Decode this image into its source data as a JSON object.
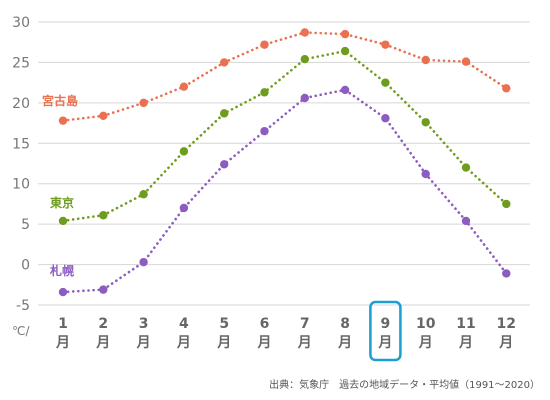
{
  "chart_data": {
    "type": "line",
    "categories": [
      {
        "num": "1",
        "unit": "月"
      },
      {
        "num": "2",
        "unit": "月"
      },
      {
        "num": "3",
        "unit": "月"
      },
      {
        "num": "4",
        "unit": "月"
      },
      {
        "num": "5",
        "unit": "月"
      },
      {
        "num": "6",
        "unit": "月"
      },
      {
        "num": "7",
        "unit": "月"
      },
      {
        "num": "8",
        "unit": "月"
      },
      {
        "num": "9",
        "unit": "月"
      },
      {
        "num": "10",
        "unit": "月"
      },
      {
        "num": "11",
        "unit": "月"
      },
      {
        "num": "12",
        "unit": "月"
      }
    ],
    "y_ticks": [
      30,
      25,
      20,
      15,
      10,
      5,
      0,
      -5
    ],
    "y_unit": "℃/",
    "ylim": [
      -5,
      30
    ],
    "grid": true,
    "highlight_category": "9",
    "highlight_color": "#1a9fd0",
    "series": [
      {
        "name": "宮古島",
        "color": "#ea7050",
        "values": [
          17.8,
          18.4,
          20.0,
          22.0,
          25.0,
          27.2,
          28.7,
          28.5,
          27.2,
          25.3,
          25.1,
          21.8
        ]
      },
      {
        "name": "東京",
        "color": "#6e9c1e",
        "values": [
          5.4,
          6.1,
          8.7,
          14.0,
          18.7,
          21.3,
          25.4,
          26.4,
          22.5,
          17.6,
          12.0,
          7.5
        ]
      },
      {
        "name": "札幌",
        "color": "#8c5cc0",
        "values": [
          -3.4,
          -3.1,
          0.3,
          7.0,
          12.4,
          16.5,
          20.6,
          21.6,
          18.1,
          11.2,
          5.4,
          -1.1
        ]
      }
    ],
    "source": "出典：気象庁　過去の地域データ・平均値（1991〜2020）"
  }
}
